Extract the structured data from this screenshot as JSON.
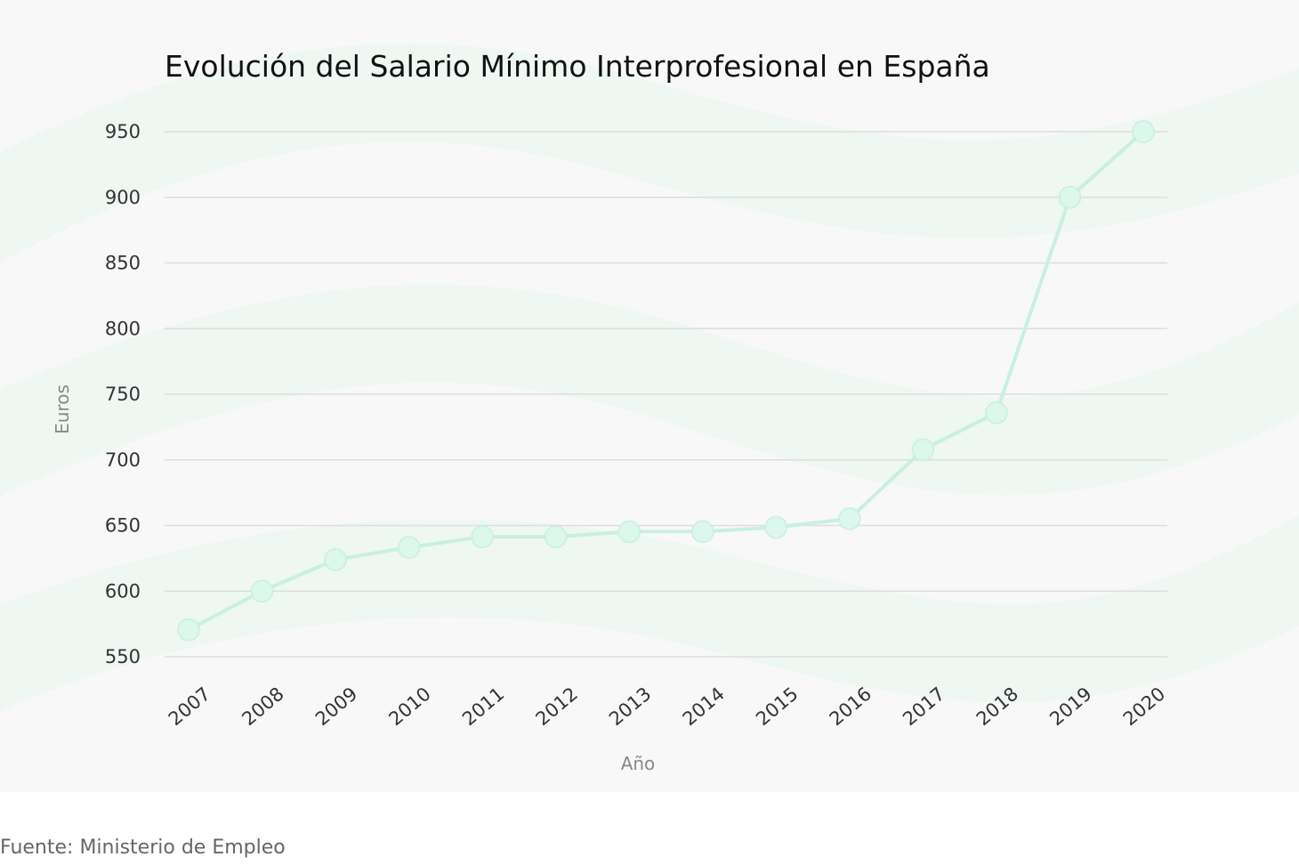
{
  "colors": {
    "line": "#c9efe0",
    "marker": "#dcf7ec",
    "grid": "#dddddd",
    "background": "#f8f8f8",
    "decor": "#e9f7f0"
  },
  "chart_data": {
    "type": "line",
    "title": "Evolución del Salario Mínimo Interprofesional en España",
    "xlabel": "Año",
    "ylabel": "Euros",
    "categories": [
      "2007",
      "2008",
      "2009",
      "2010",
      "2011",
      "2012",
      "2013",
      "2014",
      "2015",
      "2016",
      "2017",
      "2018",
      "2019",
      "2020"
    ],
    "values": [
      570.6,
      600,
      624,
      633.3,
      641.4,
      641.4,
      645.3,
      645.3,
      648.6,
      655.2,
      707.7,
      735.9,
      900,
      950
    ],
    "yticks": [
      "550",
      "600",
      "650",
      "700",
      "750",
      "800",
      "850",
      "900",
      "950"
    ],
    "ylim": [
      550,
      950
    ],
    "grid": true,
    "legend": "none"
  },
  "source": "Fuente: Ministerio de Empleo"
}
